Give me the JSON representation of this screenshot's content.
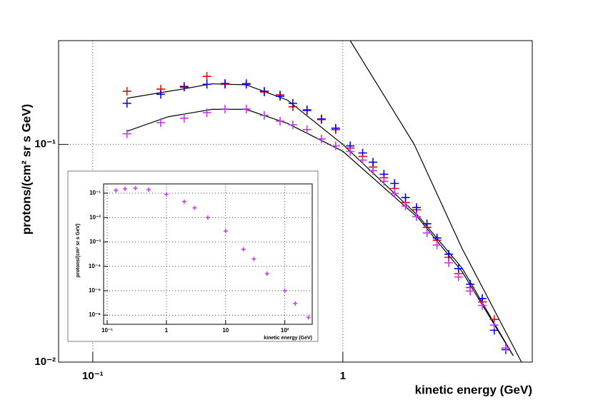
{
  "chart_data": [
    {
      "type": "scatter",
      "xlabel": "kinetic energy (GeV)",
      "ylabel": "protons/(cm² sr s GeV)",
      "xscale": "log",
      "yscale": "log",
      "grid": true,
      "xlim": [
        0.073,
        5.72
      ],
      "ylim": [
        0.01,
        0.3
      ],
      "xticks": [
        {
          "value": 0.1,
          "label": "10⁻¹"
        },
        1
      ],
      "yticks": [
        {
          "value": 0.1,
          "label": "10⁻¹"
        },
        {
          "value": 0.01,
          "label": "10⁻²"
        }
      ],
      "x": [
        0.137,
        0.187,
        0.232,
        0.286,
        0.338,
        0.411,
        0.485,
        0.561,
        0.631,
        0.719,
        0.821,
        0.936,
        1.07,
        1.2,
        1.32,
        1.46,
        1.61,
        1.78,
        1.97,
        2.17,
        2.38,
        2.65,
        2.9,
        3.23,
        3.61,
        4.03,
        4.48
      ],
      "series": [
        {
          "color": "#ff0000",
          "values": [
            0.1755,
            0.1795,
            0.185,
            0.2055,
            0.189,
            0.1906,
            0.1742,
            0.169,
            0.149,
            0.1445,
            0.13,
            0.117,
            0.0963,
            0.0881,
            0.0787,
            0.0703,
            0.0628,
            0.0541,
            0.0501,
            0.0416,
            0.0363,
            0.0303,
            0.0255,
            0.022,
            0.0189,
            0.0157,
            0.0116
          ]
        },
        {
          "color": "#0000ff",
          "values": [
            0.1545,
            0.17,
            0.1835,
            0.189,
            0.1906,
            0.189,
            0.1755,
            0.1665,
            0.1545,
            0.1433,
            0.131,
            0.1188,
            0.0985,
            0.0914,
            0.0829,
            0.073,
            0.0662,
            0.057,
            0.0513,
            0.0432,
            0.0372,
            0.0313,
            0.0269,
            0.0228,
            0.0196,
            0.014,
            0.0114
          ]
        },
        {
          "color": "#cc33ff",
          "values": [
            0.112,
            0.126,
            0.132,
            0.14,
            0.1455,
            0.1455,
            0.136,
            0.128,
            0.123,
            0.117,
            0.106,
            0.0985,
            0.0928,
            0.0848,
            0.0758,
            0.0677,
            0.0596,
            0.0521,
            0.0466,
            0.0392,
            0.0345,
            0.0286,
            0.0246,
            0.0212,
            0.0182,
            0.0148,
            0.0116
          ]
        }
      ],
      "curves": [
        {
          "color": "#000000",
          "x": [
            0.137,
            0.23,
            0.3,
            0.41,
            0.6,
            1.0,
            2.0,
            3.0,
            4.8
          ],
          "values": [
            0.163,
            0.18,
            0.19,
            0.188,
            0.16,
            0.1,
            0.047,
            0.027,
            0.0107
          ]
        },
        {
          "color": "#000000",
          "x": [
            0.137,
            0.2,
            0.3,
            0.41,
            0.6,
            1.0,
            2.0,
            3.0,
            4.8
          ],
          "values": [
            0.115,
            0.134,
            0.145,
            0.145,
            0.125,
            0.093,
            0.046,
            0.026,
            0.0107
          ]
        },
        {
          "color": "#000000",
          "x": [
            1.07,
            1.93,
            3.0,
            5.18
          ],
          "values": [
            0.3,
            0.1,
            0.0332,
            0.01
          ]
        }
      ]
    },
    {
      "type": "scatter",
      "xlabel": "kinetic energy (GeV)",
      "ylabel": "protons/(cm² sr s GeV)",
      "xscale": "log",
      "yscale": "log",
      "grid": true,
      "xlim": [
        0.087,
        290
      ],
      "ylim": [
        4.2e-07,
        0.24
      ],
      "xticks": [
        {
          "value": 0.1,
          "label": "10⁻¹"
        },
        1,
        10,
        {
          "value": 100,
          "label": "10²"
        }
      ],
      "yticks": [
        {
          "value": 0.1,
          "label": "10⁻¹"
        },
        {
          "value": 0.01,
          "label": "10⁻²"
        },
        {
          "value": 0.001,
          "label": "10⁻³"
        },
        {
          "value": 0.0001,
          "label": "10⁻⁴"
        },
        {
          "value": 1e-05,
          "label": "10⁻⁵"
        },
        {
          "value": 1e-06,
          "label": "10⁻⁶"
        }
      ],
      "x": [
        0.14,
        0.2,
        0.3,
        0.5,
        1,
        2,
        3,
        5,
        10,
        20,
        30,
        50,
        100,
        150,
        250
      ],
      "series": [
        {
          "color": "#cc33ff",
          "values": [
            0.13,
            0.15,
            0.16,
            0.14,
            0.09,
            0.045,
            0.025,
            0.01,
            0.0028,
            0.0005,
            0.0002,
            5e-05,
            1e-05,
            3e-06,
            8e-07
          ]
        }
      ]
    }
  ]
}
